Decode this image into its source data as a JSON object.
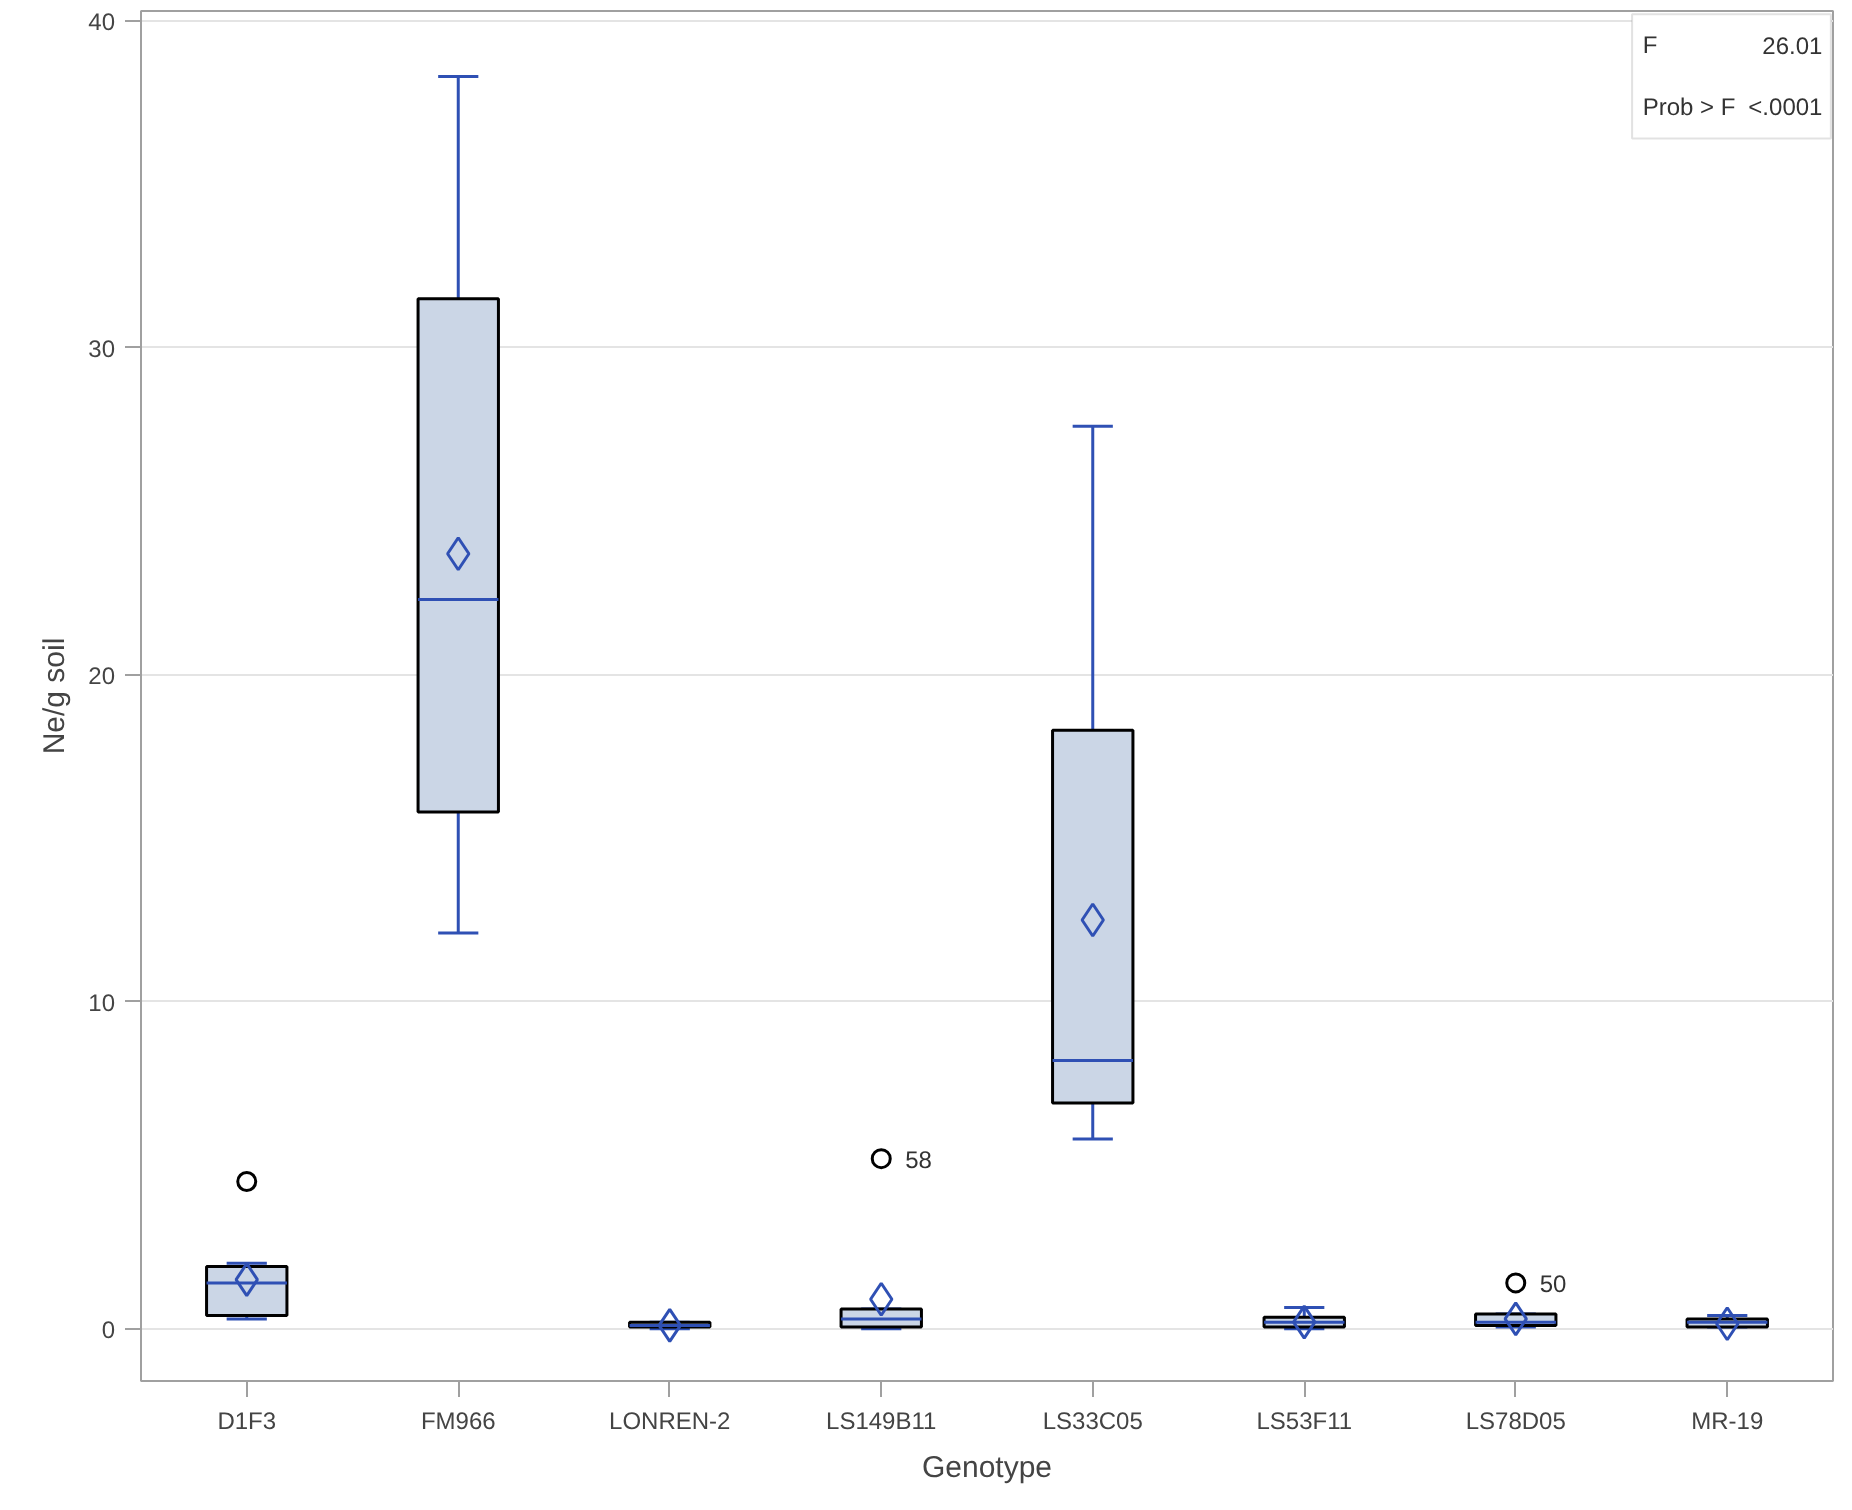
{
  "chart_data": {
    "type": "box",
    "xlabel": "Genotype",
    "ylabel": "Ne/g soil",
    "categories": [
      "D1F3",
      "FM966",
      "LONREN-2",
      "LS149B11",
      "LS33C05",
      "LS53F11",
      "LS78D05",
      "MR-19"
    ],
    "boxes": [
      {
        "low": 0.3,
        "q1": 0.4,
        "median": 1.4,
        "q3": 1.9,
        "high": 2.0,
        "mean": 1.5,
        "outliers": [
          4.5
        ]
      },
      {
        "low": 12.1,
        "q1": 15.8,
        "median": 22.3,
        "q3": 31.5,
        "high": 38.3,
        "mean": 23.7
      },
      {
        "low": 0.0,
        "q1": 0.05,
        "median": 0.1,
        "q3": 0.2,
        "high": 0.2,
        "mean": 0.1
      },
      {
        "low": 0.0,
        "q1": 0.05,
        "median": 0.3,
        "q3": 0.6,
        "high": 0.6,
        "mean": 0.9,
        "outliers": [
          5.2
        ]
      },
      {
        "low": 5.8,
        "q1": 6.9,
        "median": 8.2,
        "q3": 18.3,
        "high": 27.6,
        "mean": 12.5
      },
      {
        "low": 0.0,
        "q1": 0.05,
        "median": 0.2,
        "q3": 0.35,
        "high": 0.65,
        "mean": 0.2
      },
      {
        "low": 0.05,
        "q1": 0.1,
        "median": 0.2,
        "q3": 0.45,
        "high": 0.45,
        "mean": 0.3,
        "outliers": [
          1.4
        ]
      },
      {
        "low": 0.05,
        "q1": 0.05,
        "median": 0.2,
        "q3": 0.3,
        "high": 0.4,
        "mean": 0.15
      }
    ],
    "ylim": [
      -1.6,
      40.3
    ],
    "yticks": [
      0,
      10,
      20,
      30,
      40
    ],
    "grid": "y",
    "marker": "diamond",
    "annotations": [
      "F",
      "26.01",
      "Prob > F",
      "<.0001",
      "58",
      "50"
    ]
  }
}
